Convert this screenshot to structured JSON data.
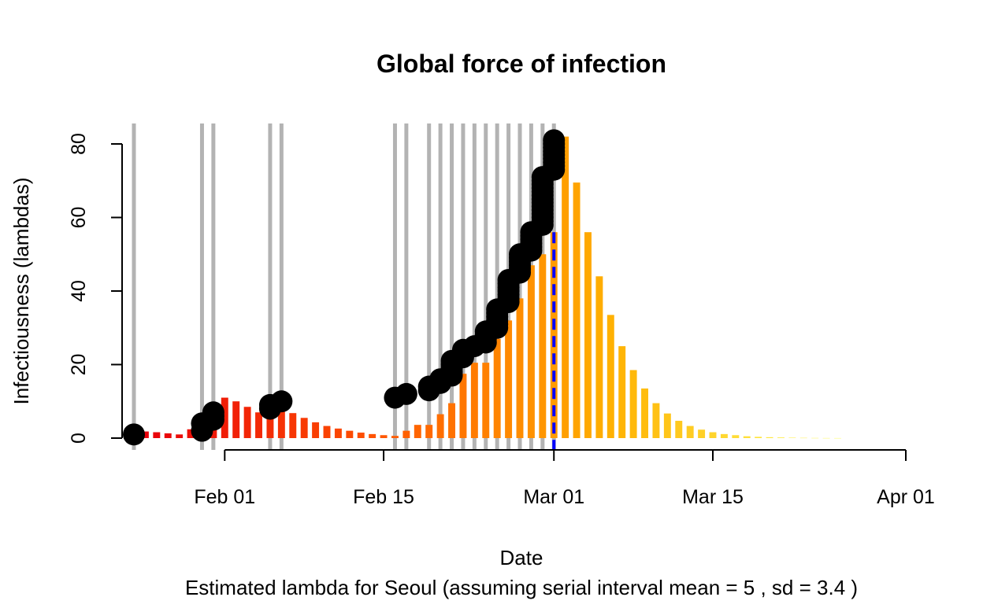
{
  "chart_data": {
    "type": "bar",
    "title": "Global force of infection",
    "xlabel": "Date",
    "ylabel": "Infectiousness (lambdas)",
    "subtitle": "Estimated lambda for Seoul (assuming serial interval mean = 5 , sd = 3.4 )",
    "x_tick_labels": [
      "Feb 01",
      "Feb 15",
      "Mar 01",
      "Mar 15",
      "Apr 01"
    ],
    "x_ticks": [
      "2020-02-01",
      "2020-02-15",
      "2020-03-01",
      "2020-03-15",
      "2020-04-01"
    ],
    "y_ticks": [
      0,
      20,
      40,
      60,
      80
    ],
    "xlim": [
      "2020-01-24",
      "2020-04-01"
    ],
    "ylim": [
      0,
      82
    ],
    "grid": false,
    "bar_color_gradient": [
      "#E8000B",
      "#FF5400",
      "#FFB000",
      "#FFFF60"
    ],
    "lambda_bars": {
      "start_date": "2020-01-25",
      "values": [
        1.8,
        1.6,
        1.3,
        1.0,
        2.4,
        5.0,
        9.0,
        11.0,
        10.0,
        8.5,
        7.0,
        9.0,
        8.0,
        6.8,
        5.5,
        4.3,
        3.3,
        2.6,
        2.0,
        1.5,
        1.1,
        0.8,
        0.6,
        2.0,
        3.6,
        3.6,
        6.5,
        9.5,
        17.5,
        20.5,
        20.5,
        27.0,
        32.0,
        38.0,
        47.0,
        50.0,
        56.0,
        82.0,
        69.5,
        56.0,
        44.0,
        33.5,
        25.0,
        18.5,
        13.5,
        9.5,
        6.7,
        4.7,
        3.3,
        2.3,
        1.6,
        1.1,
        0.8,
        0.5,
        0.35,
        0.25,
        0.18,
        0.12,
        0.08,
        0.05,
        0.03,
        0.02
      ]
    },
    "observed_cases": {
      "dates": [
        "2020-01-24",
        "2020-01-30",
        "2020-01-31",
        "2020-02-05",
        "2020-02-06",
        "2020-02-16",
        "2020-02-17",
        "2020-02-19",
        "2020-02-20",
        "2020-02-21",
        "2020-02-22",
        "2020-02-23",
        "2020-02-24",
        "2020-02-25",
        "2020-02-26",
        "2020-02-27",
        "2020-02-28",
        "2020-02-29",
        "2020-03-01"
      ],
      "points": [
        {
          "date": "2020-01-24",
          "cum": [
            1
          ]
        },
        {
          "date": "2020-01-30",
          "cum": [
            2,
            4
          ]
        },
        {
          "date": "2020-01-31",
          "cum": [
            5,
            6,
            7
          ]
        },
        {
          "date": "2020-02-05",
          "cum": [
            8,
            9
          ]
        },
        {
          "date": "2020-02-06",
          "cum": [
            10
          ]
        },
        {
          "date": "2020-02-16",
          "cum": [
            11
          ]
        },
        {
          "date": "2020-02-17",
          "cum": [
            12
          ]
        },
        {
          "date": "2020-02-19",
          "cum": [
            13,
            14
          ]
        },
        {
          "date": "2020-02-20",
          "cum": [
            15,
            16
          ]
        },
        {
          "date": "2020-02-21",
          "cum": [
            17,
            18,
            19,
            20,
            21
          ]
        },
        {
          "date": "2020-02-22",
          "cum": [
            22,
            23,
            24
          ]
        },
        {
          "date": "2020-02-23",
          "cum": [
            25
          ]
        },
        {
          "date": "2020-02-24",
          "cum": [
            26,
            27,
            28,
            29
          ]
        },
        {
          "date": "2020-02-25",
          "cum": [
            30,
            31,
            32,
            33,
            34,
            35
          ]
        },
        {
          "date": "2020-02-26",
          "cum": [
            37,
            38,
            39,
            40,
            41,
            42,
            43
          ]
        },
        {
          "date": "2020-02-27",
          "cum": [
            45,
            46,
            47,
            48,
            49,
            50
          ]
        },
        {
          "date": "2020-02-28",
          "cum": [
            51,
            52,
            53,
            54,
            55,
            56
          ]
        },
        {
          "date": "2020-02-29",
          "cum": [
            58,
            59,
            60,
            61,
            62,
            63,
            64,
            65,
            66,
            67,
            68,
            69,
            70,
            71
          ]
        },
        {
          "date": "2020-03-01",
          "cum": [
            73,
            74,
            75,
            76,
            77,
            78,
            79,
            80,
            81
          ]
        }
      ],
      "case_line_color": "#B3B3B3",
      "point_color": "#000000"
    },
    "current_date_marker": {
      "date": "2020-03-01",
      "color": "#0000FF",
      "style": "dashed"
    }
  }
}
